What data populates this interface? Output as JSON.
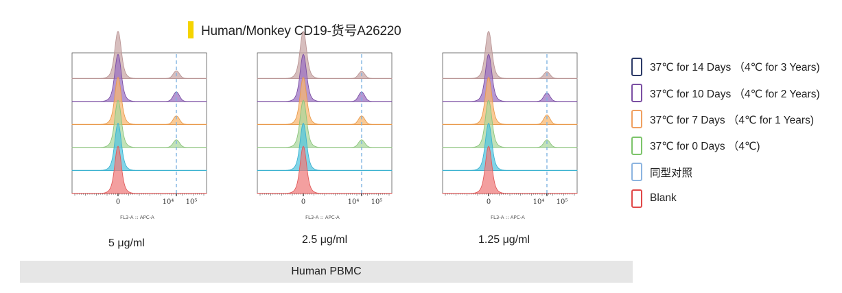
{
  "title": "Human/Monkey CD19-货号A26220",
  "title_bar_color": "#f5d400",
  "legend": [
    {
      "label": "37℃ for 14 Days （4℃ for 3 Years)",
      "color": "#2b3a67"
    },
    {
      "label": "37℃ for 10 Days （4℃ for 2 Years)",
      "color": "#7b4fa3"
    },
    {
      "label": "37℃ for 7 Days （4℃ for 1 Years)",
      "color": "#f0a060"
    },
    {
      "label": "37℃ for 0 Days （4℃)",
      "color": "#7cc46a"
    },
    {
      "label": "同型对照",
      "color": "#8cb4e0"
    },
    {
      "label": "Blank",
      "color": "#e04848"
    }
  ],
  "footer_label": "Human PBMC",
  "chart_data": [
    {
      "type": "area",
      "subtitle": "5 μg/ml",
      "xlabel": "FL3-A :: APC-A",
      "x_ticks": [
        "0",
        "10⁴",
        "10⁵"
      ],
      "reference_line_at": "10⁴",
      "series": [
        {
          "name": "37℃ for 14 Days （4℃ for 3 Years)",
          "fill": "#c7a5a5",
          "line": "#ba9696",
          "negative_peak": 1.0,
          "positive_peak": 0.16
        },
        {
          "name": "37℃ for 10 Days （4℃ for 2 Years)",
          "fill": "#9a6fc0",
          "line": "#7b4fa3",
          "negative_peak": 1.0,
          "positive_peak": 0.2
        },
        {
          "name": "37℃ for 7 Days （4℃ for 1 Years)",
          "fill": "#f7b66e",
          "line": "#e99a4d",
          "negative_peak": 1.0,
          "positive_peak": 0.18
        },
        {
          "name": "37℃ for 0 Days （4℃)",
          "fill": "#a9d79c",
          "line": "#8cc47c",
          "negative_peak": 1.0,
          "positive_peak": 0.16
        },
        {
          "name": "同型对照",
          "fill": "#52c4de",
          "line": "#3bb2d0",
          "negative_peak": 1.0,
          "positive_peak": 0
        },
        {
          "name": "Blank",
          "fill": "#ef7a7a",
          "line": "#e05a5a",
          "negative_peak": 1.0,
          "positive_peak": 0
        }
      ]
    },
    {
      "type": "area",
      "subtitle": "2.5 μg/ml",
      "xlabel": "FL3-A :: APC-A",
      "x_ticks": [
        "0",
        "10⁴",
        "10⁵"
      ],
      "reference_line_at": "10⁴",
      "series": [
        {
          "name": "37℃ for 14 Days （4℃ for 3 Years)",
          "fill": "#c7a5a5",
          "line": "#ba9696",
          "negative_peak": 1.0,
          "positive_peak": 0.15
        },
        {
          "name": "37℃ for 10 Days （4℃ for 2 Years)",
          "fill": "#9a6fc0",
          "line": "#7b4fa3",
          "negative_peak": 1.0,
          "positive_peak": 0.2
        },
        {
          "name": "37℃ for 7 Days （4℃ for 1 Years)",
          "fill": "#f7b66e",
          "line": "#e99a4d",
          "negative_peak": 1.0,
          "positive_peak": 0.18
        },
        {
          "name": "37℃ for 0 Days （4℃)",
          "fill": "#a9d79c",
          "line": "#8cc47c",
          "negative_peak": 1.0,
          "positive_peak": 0.16
        },
        {
          "name": "同型对照",
          "fill": "#52c4de",
          "line": "#3bb2d0",
          "negative_peak": 1.0,
          "positive_peak": 0
        },
        {
          "name": "Blank",
          "fill": "#ef7a7a",
          "line": "#e05a5a",
          "negative_peak": 1.0,
          "positive_peak": 0
        }
      ]
    },
    {
      "type": "area",
      "subtitle": "1.25 μg/ml",
      "xlabel": "FL3-A :: APC-A",
      "x_ticks": [
        "0",
        "10⁴",
        "10⁵"
      ],
      "reference_line_at": "10⁴",
      "series": [
        {
          "name": "37℃ for 14 Days （4℃ for 3 Years)",
          "fill": "#c7a5a5",
          "line": "#ba9696",
          "negative_peak": 1.0,
          "positive_peak": 0.14
        },
        {
          "name": "37℃ for 10 Days （4℃ for 2 Years)",
          "fill": "#9a6fc0",
          "line": "#7b4fa3",
          "negative_peak": 1.0,
          "positive_peak": 0.18
        },
        {
          "name": "37℃ for 7 Days （4℃ for 1 Years)",
          "fill": "#f7b66e",
          "line": "#e99a4d",
          "negative_peak": 1.0,
          "positive_peak": 0.2
        },
        {
          "name": "37℃ for 0 Days （4℃)",
          "fill": "#a9d79c",
          "line": "#8cc47c",
          "negative_peak": 1.0,
          "positive_peak": 0.16
        },
        {
          "name": "同型对照",
          "fill": "#52c4de",
          "line": "#3bb2d0",
          "negative_peak": 1.0,
          "positive_peak": 0
        },
        {
          "name": "Blank",
          "fill": "#ef7a7a",
          "line": "#e05a5a",
          "negative_peak": 1.0,
          "positive_peak": 0
        }
      ]
    }
  ]
}
